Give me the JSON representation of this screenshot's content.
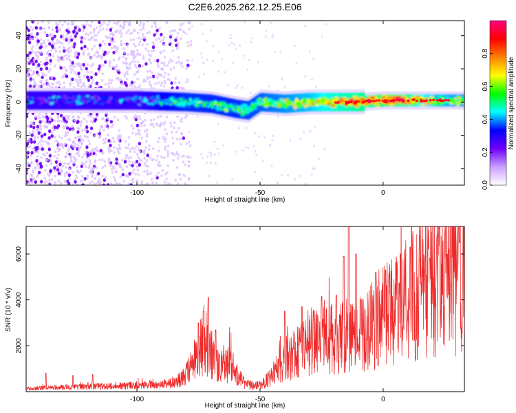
{
  "title": "C2E6.2025.262.12.25.E06",
  "chart_data": [
    {
      "type": "heatmap",
      "xlabel": "Height of straight line (km)",
      "ylabel": "Frequency (Hz)",
      "xlim": [
        -145,
        33
      ],
      "ylim": [
        -50,
        49
      ],
      "x_ticks": [
        -100,
        -50,
        0
      ],
      "x_tick_labels": [
        "-100",
        "-50",
        "0"
      ],
      "y_ticks": [
        -40,
        -20,
        0,
        20,
        40
      ],
      "y_tick_labels": [
        "-40",
        "-20",
        "0",
        "20",
        "40"
      ],
      "grid": false,
      "colorbar": {
        "label": "Normalized spectral amplitude",
        "range": [
          0,
          1
        ],
        "ticks": [
          0.0,
          0.2,
          0.4,
          0.6,
          0.8
        ],
        "tick_labels": [
          "0.0",
          "0.2",
          "0.4",
          "0.6",
          "0.8"
        ],
        "colormap": [
          "#ffffff",
          "#c8a0ff",
          "#7000ff",
          "#0000ff",
          "#00ffff",
          "#00ff00",
          "#ffff00",
          "#ff8000",
          "#ff0000",
          "#ff0080"
        ]
      },
      "ridge_frequency_hz": [
        [
          -145,
          1
        ],
        [
          -120,
          1
        ],
        [
          -100,
          1
        ],
        [
          -80,
          0
        ],
        [
          -70,
          -1
        ],
        [
          -60,
          -4
        ],
        [
          -55,
          -5
        ],
        [
          -50,
          0
        ],
        [
          -40,
          -1
        ],
        [
          -30,
          0
        ],
        [
          -20,
          0
        ],
        [
          -10,
          0
        ],
        [
          0,
          1
        ],
        [
          10,
          1
        ],
        [
          20,
          1
        ],
        [
          33,
          1
        ]
      ],
      "ridge_amplitude": [
        [
          -145,
          0.3
        ],
        [
          -100,
          0.3
        ],
        [
          -90,
          0.4
        ],
        [
          -80,
          0.45
        ],
        [
          -60,
          0.45
        ],
        [
          -50,
          0.5
        ],
        [
          -30,
          0.6
        ],
        [
          -20,
          0.7
        ],
        [
          -10,
          0.75
        ],
        [
          0,
          0.8
        ],
        [
          10,
          0.75
        ],
        [
          20,
          0.6
        ],
        [
          33,
          0.55
        ]
      ],
      "noise_floor_extent_km": -83
    },
    {
      "type": "line",
      "xlabel": "Height of straight line (km)",
      "ylabel": "SNR (10 * v/v)",
      "xlim": [
        -145,
        33
      ],
      "ylim": [
        0,
        7200
      ],
      "x_ticks": [
        -100,
        -50,
        0
      ],
      "x_tick_labels": [
        "-100",
        "-50",
        "0"
      ],
      "y_ticks": [
        2000,
        4000,
        6000
      ],
      "y_tick_labels": [
        "2000",
        "4000",
        "6000"
      ],
      "grid": false,
      "color": "#ee2a2a",
      "envelope": [
        [
          -145,
          150
        ],
        [
          -120,
          250
        ],
        [
          -100,
          300
        ],
        [
          -90,
          350
        ],
        [
          -85,
          500
        ],
        [
          -80,
          900
        ],
        [
          -76,
          1800
        ],
        [
          -73,
          2800
        ],
        [
          -71,
          2400
        ],
        [
          -68,
          1500
        ],
        [
          -65,
          1200
        ],
        [
          -62,
          1500
        ],
        [
          -59,
          800
        ],
        [
          -56,
          400
        ],
        [
          -52,
          300
        ],
        [
          -48,
          500
        ],
        [
          -44,
          900
        ],
        [
          -40,
          1600
        ],
        [
          -35,
          2200
        ],
        [
          -30,
          2600
        ],
        [
          -25,
          2900
        ],
        [
          -20,
          2700
        ],
        [
          -17,
          3000
        ],
        [
          -14,
          3300
        ],
        [
          -10,
          3000
        ],
        [
          -5,
          3400
        ],
        [
          0,
          3900
        ],
        [
          5,
          4300
        ],
        [
          10,
          4800
        ],
        [
          15,
          5300
        ],
        [
          20,
          5700
        ],
        [
          25,
          5900
        ],
        [
          33,
          6200
        ]
      ],
      "spikes": [
        [
          -137,
          800
        ],
        [
          -126,
          700
        ],
        [
          -118,
          750
        ],
        [
          -75,
          3000
        ],
        [
          -73,
          3500
        ],
        [
          -71,
          4100
        ],
        [
          -68,
          2700
        ],
        [
          -40,
          3500
        ],
        [
          -33,
          3700
        ],
        [
          -25,
          4150
        ],
        [
          -19,
          4200
        ],
        [
          -16,
          5900
        ],
        [
          -14,
          7200
        ],
        [
          -11,
          6000
        ],
        [
          -9,
          4000
        ],
        [
          -3,
          5200
        ],
        [
          1,
          5300
        ],
        [
          7,
          6000
        ],
        [
          11,
          6300
        ],
        [
          19,
          5800
        ],
        [
          26,
          6000
        ],
        [
          31,
          6500
        ]
      ]
    }
  ]
}
